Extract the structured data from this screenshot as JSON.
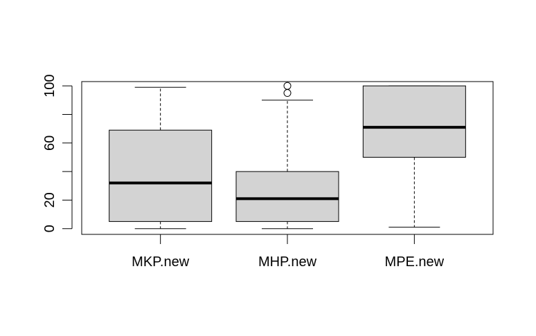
{
  "chart_data": {
    "type": "boxplot",
    "title": "",
    "xlabel": "",
    "ylabel": "",
    "ylim": [
      -4,
      103
    ],
    "yticks": [
      0,
      20,
      40,
      60,
      80,
      100
    ],
    "ytick_labels": [
      "0",
      "20",
      "",
      "60",
      "",
      "100"
    ],
    "categories": [
      "MKP.new",
      "MHP.new",
      "MPE.new"
    ],
    "boxes": [
      {
        "name": "MKP.new",
        "min": 0,
        "q1": 5,
        "median": 32,
        "q3": 69,
        "max": 99,
        "outliers": []
      },
      {
        "name": "MHP.new",
        "min": 0,
        "q1": 5,
        "median": 21,
        "q3": 40,
        "max": 90,
        "outliers": [
          95,
          100
        ]
      },
      {
        "name": "MPE.new",
        "min": 1,
        "q1": 50,
        "median": 71,
        "q3": 100,
        "max": 100,
        "outliers": []
      }
    ],
    "box_fill": "#d3d3d3",
    "grid": false,
    "legend": "none"
  }
}
